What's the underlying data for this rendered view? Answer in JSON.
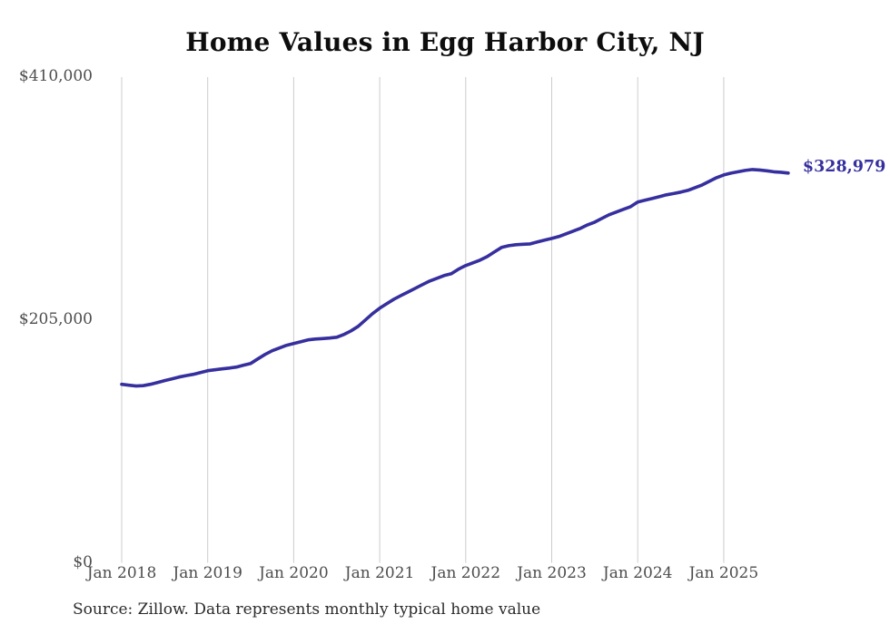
{
  "page": {
    "source_note": "Source: Zillow. Data represents monthly typical home value"
  },
  "chart_data": {
    "type": "line",
    "title": "Home Values in Egg Harbor City, NJ",
    "series_name": "Monthly typical home value",
    "xlabel": "",
    "ylabel": "",
    "ylim": [
      0,
      410000
    ],
    "grid": "vertical-only",
    "legend": "none",
    "line_color": "#362f9e",
    "grid_color": "#cccccc",
    "tick_color": "#4d4d4d",
    "end_label": "$328,979",
    "end_value": 328979,
    "x_tick_labels": [
      "Jan 2018",
      "Jan 2019",
      "Jan 2020",
      "Jan 2021",
      "Jan 2022",
      "Jan 2023",
      "Jan 2024",
      "Jan 2025"
    ],
    "y_ticks": [
      {
        "label": "$410,000",
        "value": 410000
      },
      {
        "label": "$205,000",
        "value": 205000
      },
      {
        "label": "$0",
        "value": 0
      }
    ],
    "points": [
      [
        "2018-01",
        150700
      ],
      [
        "2018-02",
        149900
      ],
      [
        "2018-03",
        149200
      ],
      [
        "2018-04",
        149500
      ],
      [
        "2018-05",
        150700
      ],
      [
        "2018-06",
        152200
      ],
      [
        "2018-07",
        153800
      ],
      [
        "2018-08",
        155300
      ],
      [
        "2018-09",
        156800
      ],
      [
        "2018-10",
        158000
      ],
      [
        "2018-11",
        159100
      ],
      [
        "2018-12",
        160600
      ],
      [
        "2019-01",
        162200
      ],
      [
        "2019-02",
        162900
      ],
      [
        "2019-03",
        163700
      ],
      [
        "2019-04",
        164400
      ],
      [
        "2019-05",
        165200
      ],
      [
        "2019-06",
        166800
      ],
      [
        "2019-07",
        168300
      ],
      [
        "2019-08",
        172100
      ],
      [
        "2019-09",
        175900
      ],
      [
        "2019-10",
        179000
      ],
      [
        "2019-11",
        181300
      ],
      [
        "2019-12",
        183600
      ],
      [
        "2020-01",
        185100
      ],
      [
        "2020-02",
        186600
      ],
      [
        "2020-03",
        188200
      ],
      [
        "2020-04",
        188900
      ],
      [
        "2020-05",
        189300
      ],
      [
        "2020-06",
        189700
      ],
      [
        "2020-07",
        190400
      ],
      [
        "2020-08",
        192700
      ],
      [
        "2020-09",
        195800
      ],
      [
        "2020-10",
        199600
      ],
      [
        "2020-11",
        205000
      ],
      [
        "2020-12",
        210300
      ],
      [
        "2021-01",
        214900
      ],
      [
        "2021-02",
        218800
      ],
      [
        "2021-03",
        222600
      ],
      [
        "2021-04",
        225700
      ],
      [
        "2021-05",
        228700
      ],
      [
        "2021-06",
        231800
      ],
      [
        "2021-07",
        234900
      ],
      [
        "2021-08",
        237900
      ],
      [
        "2021-09",
        240200
      ],
      [
        "2021-10",
        242500
      ],
      [
        "2021-11",
        244000
      ],
      [
        "2021-12",
        247900
      ],
      [
        "2022-01",
        250900
      ],
      [
        "2022-02",
        253200
      ],
      [
        "2022-03",
        255500
      ],
      [
        "2022-04",
        258500
      ],
      [
        "2022-05",
        262400
      ],
      [
        "2022-06",
        266200
      ],
      [
        "2022-07",
        267700
      ],
      [
        "2022-08",
        268500
      ],
      [
        "2022-09",
        268900
      ],
      [
        "2022-10",
        269200
      ],
      [
        "2022-11",
        270800
      ],
      [
        "2022-12",
        272300
      ],
      [
        "2023-01",
        273800
      ],
      [
        "2023-02",
        275400
      ],
      [
        "2023-03",
        277700
      ],
      [
        "2023-04",
        280000
      ],
      [
        "2023-05",
        282300
      ],
      [
        "2023-06",
        285300
      ],
      [
        "2023-07",
        287600
      ],
      [
        "2023-08",
        290700
      ],
      [
        "2023-09",
        293800
      ],
      [
        "2023-10",
        296100
      ],
      [
        "2023-11",
        298400
      ],
      [
        "2023-12",
        300600
      ],
      [
        "2024-01",
        304500
      ],
      [
        "2024-02",
        306000
      ],
      [
        "2024-03",
        307500
      ],
      [
        "2024-04",
        309000
      ],
      [
        "2024-05",
        310600
      ],
      [
        "2024-06",
        311700
      ],
      [
        "2024-07",
        312900
      ],
      [
        "2024-08",
        314400
      ],
      [
        "2024-09",
        316700
      ],
      [
        "2024-10",
        319000
      ],
      [
        "2024-11",
        322000
      ],
      [
        "2024-12",
        325100
      ],
      [
        "2025-01",
        327400
      ],
      [
        "2025-02",
        328900
      ],
      [
        "2025-03",
        330100
      ],
      [
        "2025-04",
        331200
      ],
      [
        "2025-05",
        332000
      ],
      [
        "2025-06",
        331600
      ],
      [
        "2025-07",
        330900
      ],
      [
        "2025-08",
        330100
      ],
      [
        "2025-09",
        329700
      ],
      [
        "2025-10",
        328979
      ]
    ]
  }
}
